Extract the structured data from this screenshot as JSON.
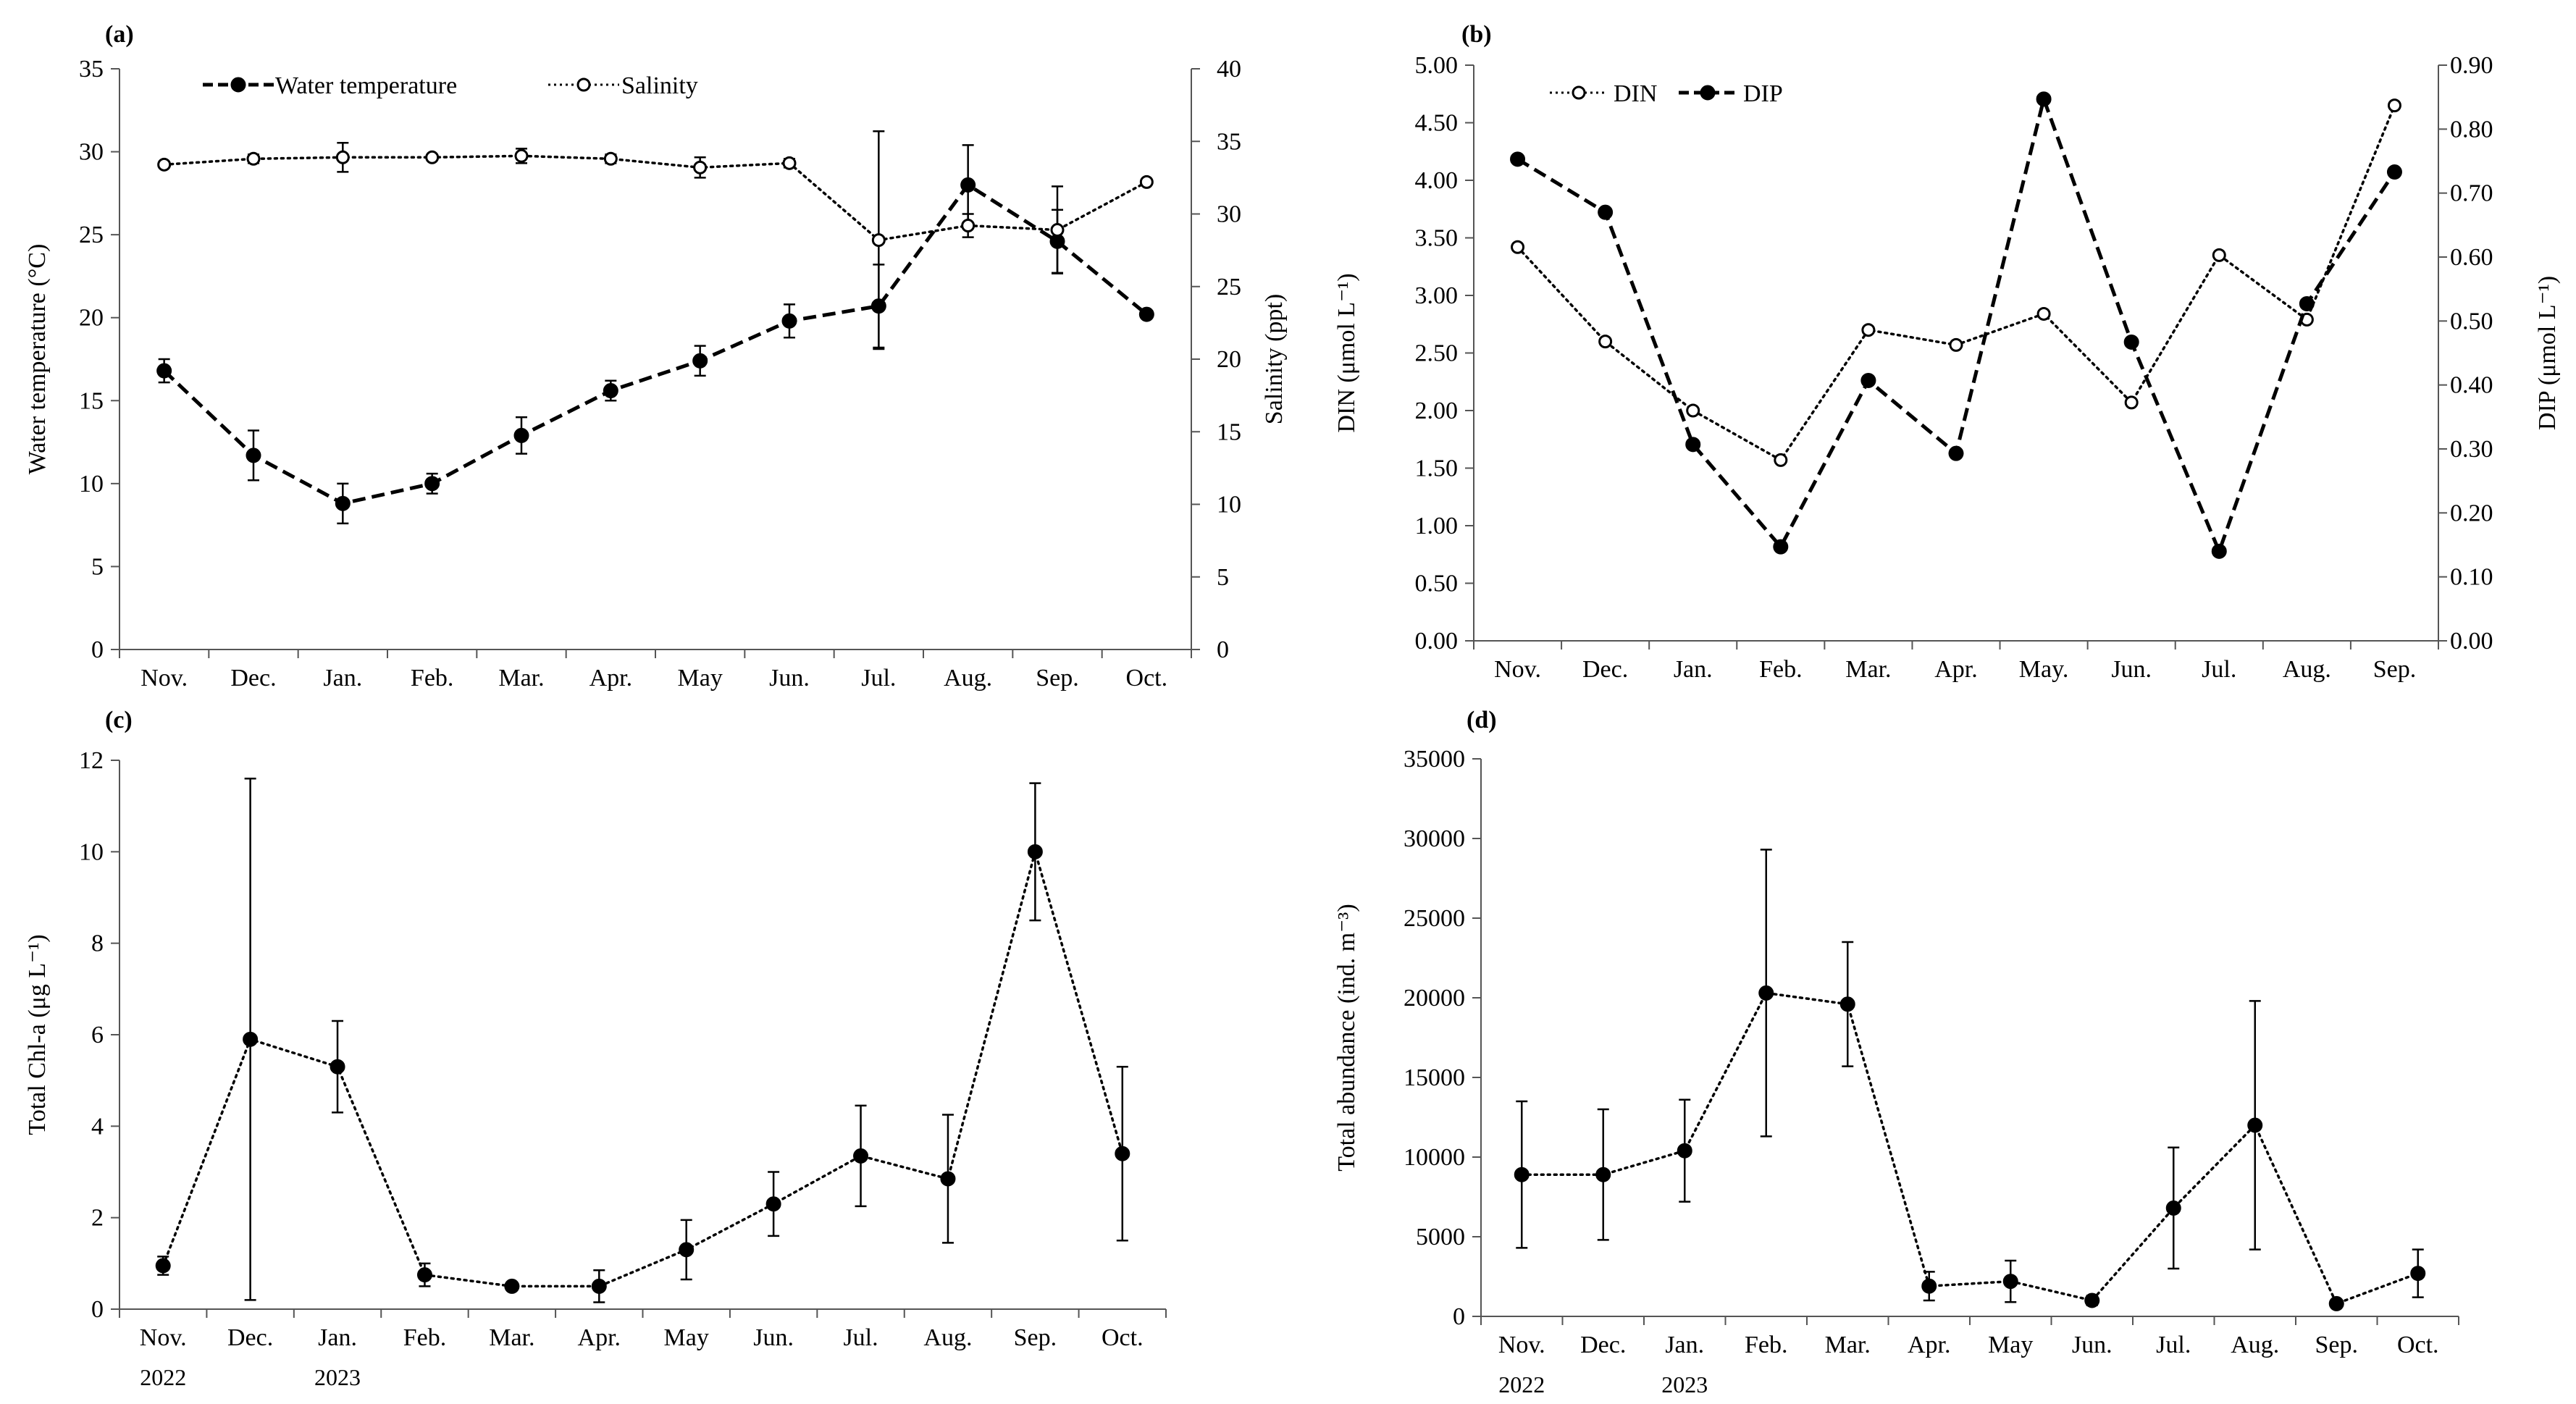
{
  "chart_data": [
    {
      "panel": "(a)",
      "type": "line",
      "title": "",
      "categories": [
        "Nov.",
        "Dec.",
        "Jan.",
        "Feb.",
        "Mar.",
        "Apr.",
        "May",
        "Jun.",
        "Jul.",
        "Aug.",
        "Sep.",
        "Oct."
      ],
      "ylabel": "Water temperature (°C)",
      "ylim": [
        0,
        35
      ],
      "yticks": [
        "0",
        "5",
        "10",
        "15",
        "20",
        "25",
        "30",
        "35"
      ],
      "y2label": "Salinity (ppt)",
      "y2lim": [
        0,
        40
      ],
      "y2ticks": [
        "0",
        "5",
        "10",
        "15",
        "20",
        "25",
        "30",
        "35",
        "40"
      ],
      "legend_position": "top-left",
      "series": [
        {
          "name": "Water temperature",
          "axis": "left",
          "style": "dashed-filled",
          "values": [
            16.8,
            11.7,
            8.8,
            10.0,
            12.9,
            15.6,
            17.4,
            19.8,
            20.7,
            28.0,
            24.6,
            20.2
          ],
          "errors": [
            0.7,
            1.5,
            1.2,
            0.6,
            1.1,
            0.6,
            0.9,
            1.0,
            2.5,
            2.4,
            1.9,
            0
          ]
        },
        {
          "name": "Salinity",
          "axis": "right",
          "style": "dotted-open",
          "values": [
            33.4,
            33.8,
            33.9,
            33.9,
            34.0,
            33.8,
            33.2,
            33.5,
            28.2,
            29.2,
            28.9,
            32.2
          ],
          "errors": [
            0,
            0.3,
            1.0,
            0,
            0.5,
            0.3,
            0.7,
            0.3,
            7.5,
            0.8,
            3.0,
            0
          ]
        }
      ]
    },
    {
      "panel": "(b)",
      "type": "line",
      "title": "",
      "categories": [
        "Nov.",
        "Dec.",
        "Jan.",
        "Feb.",
        "Mar.",
        "Apr.",
        "May.",
        "Jun.",
        "Jul.",
        "Aug.",
        "Sep."
      ],
      "ylabel": "DIN (μmol L⁻¹)",
      "ylim": [
        0,
        5
      ],
      "yticks": [
        "0.00",
        "0.50",
        "1.00",
        "1.50",
        "2.00",
        "2.50",
        "3.00",
        "3.50",
        "4.00",
        "4.50",
        "5.00"
      ],
      "y2label": "DIP (μmol L⁻¹)",
      "y2lim": [
        0,
        0.9
      ],
      "y2ticks": [
        "0.00",
        "0.10",
        "0.20",
        "0.30",
        "0.40",
        "0.50",
        "0.60",
        "0.70",
        "0.80",
        "0.90"
      ],
      "legend_position": "top-left",
      "series": [
        {
          "name": "DIN",
          "axis": "left",
          "style": "dotted-open",
          "values": [
            3.42,
            2.6,
            2.0,
            1.57,
            2.7,
            2.57,
            2.84,
            2.07,
            3.35,
            2.79,
            4.65
          ]
        },
        {
          "name": "DIP",
          "axis": "right",
          "style": "dashed-filled",
          "values": [
            0.753,
            0.67,
            0.307,
            0.147,
            0.407,
            0.293,
            0.847,
            0.467,
            0.14,
            0.527,
            0.733
          ]
        }
      ]
    },
    {
      "panel": "(c)",
      "type": "line",
      "title": "",
      "categories": [
        "Nov.",
        "Dec.",
        "Jan.",
        "Feb.",
        "Mar.",
        "Apr.",
        "May",
        "Jun.",
        "Jul.",
        "Aug.",
        "Sep.",
        "Oct."
      ],
      "year_labels": [
        {
          "index": 0,
          "label": "2022"
        },
        {
          "index": 2,
          "label": "2023"
        }
      ],
      "ylabel": "Total  Chl-a (μg L⁻¹)",
      "ylim": [
        0,
        12
      ],
      "yticks": [
        "0",
        "2",
        "4",
        "6",
        "8",
        "10",
        "12"
      ],
      "series": [
        {
          "name": "Total Chl-a",
          "axis": "left",
          "style": "dotted-filled",
          "values": [
            0.95,
            5.9,
            5.3,
            0.75,
            0.5,
            0.5,
            1.3,
            2.3,
            3.35,
            2.85,
            10.0,
            3.4
          ],
          "errors": [
            0.2,
            5.7,
            1.0,
            0.25,
            0,
            0.35,
            0.65,
            0.7,
            1.1,
            1.4,
            1.5,
            1.9
          ]
        }
      ]
    },
    {
      "panel": "(d)",
      "type": "line",
      "title": "",
      "categories": [
        "Nov.",
        "Dec.",
        "Jan.",
        "Feb.",
        "Mar.",
        "Apr.",
        "May",
        "Jun.",
        "Jul.",
        "Aug.",
        "Sep.",
        "Oct."
      ],
      "year_labels": [
        {
          "index": 0,
          "label": "2022"
        },
        {
          "index": 2,
          "label": "2023"
        }
      ],
      "ylabel": "Total abundance (ind. m⁻³)",
      "ylim": [
        0,
        35000
      ],
      "yticks": [
        "0",
        "5000",
        "10000",
        "15000",
        "20000",
        "25000",
        "30000",
        "35000"
      ],
      "series": [
        {
          "name": "Total abundance",
          "axis": "left",
          "style": "dotted-filled",
          "values": [
            8900,
            8900,
            10400,
            20300,
            19600,
            1900,
            2200,
            1000,
            6800,
            12000,
            800,
            2700
          ],
          "errors": [
            4600,
            4100,
            3200,
            9000,
            3900,
            900,
            1300,
            300,
            3800,
            7800,
            0,
            1500
          ]
        }
      ]
    }
  ]
}
